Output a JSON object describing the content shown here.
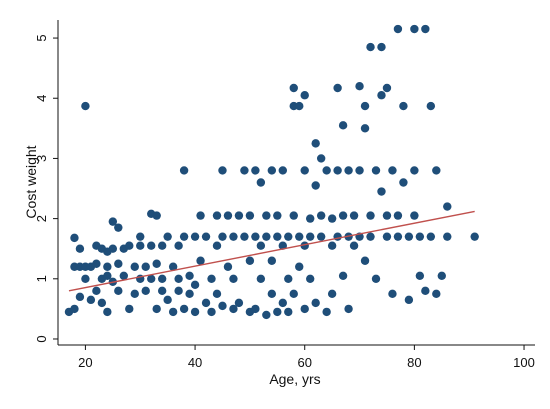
{
  "chart_data": {
    "type": "scatter",
    "xlabel": "Age, yrs",
    "ylabel": "Cost weight",
    "xlim": [
      15,
      102
    ],
    "ylim": [
      -0.1,
      5.3
    ],
    "x_ticks": [
      "20",
      "40",
      "60",
      "80",
      "100"
    ],
    "y_ticks": [
      "0",
      "1",
      "2",
      "3",
      "4",
      "5"
    ],
    "grid": false,
    "legend": "none",
    "colors": {
      "points": "#1f4e79",
      "fit_line": "#c0504d",
      "axis": "#111111"
    },
    "fit_line": {
      "x": [
        17,
        91
      ],
      "y": [
        0.8,
        2.12
      ]
    },
    "series": [
      {
        "points": [
          [
            17,
            0.45
          ],
          [
            18,
            0.5
          ],
          [
            18,
            1.2
          ],
          [
            18,
            1.68
          ],
          [
            19,
            1.5
          ],
          [
            19,
            1.2
          ],
          [
            19,
            0.7
          ],
          [
            20,
            3.87
          ],
          [
            20,
            1.2
          ],
          [
            20,
            1.0
          ],
          [
            21,
            1.2
          ],
          [
            21,
            0.65
          ],
          [
            22,
            1.25
          ],
          [
            22,
            0.8
          ],
          [
            22,
            1.55
          ],
          [
            23,
            1.5
          ],
          [
            23,
            1.0
          ],
          [
            23,
            0.6
          ],
          [
            24,
            1.05
          ],
          [
            24,
            1.2
          ],
          [
            24,
            1.45
          ],
          [
            24,
            0.45
          ],
          [
            25,
            1.95
          ],
          [
            25,
            1.5
          ],
          [
            25,
            0.95
          ],
          [
            26,
            1.25
          ],
          [
            26,
            0.8
          ],
          [
            26,
            1.85
          ],
          [
            27,
            1.5
          ],
          [
            27,
            1.05
          ],
          [
            28,
            0.5
          ],
          [
            28,
            1.55
          ],
          [
            29,
            1.2
          ],
          [
            29,
            0.75
          ],
          [
            30,
            1.55
          ],
          [
            30,
            1.0
          ],
          [
            30,
            1.7
          ],
          [
            31,
            1.2
          ],
          [
            31,
            0.8
          ],
          [
            32,
            2.08
          ],
          [
            32,
            1.55
          ],
          [
            32,
            1.0
          ],
          [
            33,
            0.5
          ],
          [
            33,
            2.05
          ],
          [
            33,
            1.25
          ],
          [
            34,
            0.8
          ],
          [
            34,
            1.55
          ],
          [
            34,
            1.0
          ],
          [
            35,
            1.7
          ],
          [
            35,
            0.65
          ],
          [
            36,
            1.2
          ],
          [
            36,
            0.45
          ],
          [
            37,
            1.0
          ],
          [
            37,
            0.8
          ],
          [
            37,
            1.55
          ],
          [
            38,
            2.8
          ],
          [
            38,
            1.7
          ],
          [
            38,
            0.5
          ],
          [
            39,
            1.05
          ],
          [
            39,
            0.75
          ],
          [
            40,
            1.7
          ],
          [
            40,
            0.9
          ],
          [
            40,
            0.45
          ],
          [
            41,
            1.3
          ],
          [
            41,
            2.05
          ],
          [
            42,
            0.6
          ],
          [
            42,
            1.7
          ],
          [
            43,
            1.0
          ],
          [
            43,
            0.45
          ],
          [
            44,
            2.05
          ],
          [
            44,
            1.55
          ],
          [
            44,
            0.75
          ],
          [
            45,
            2.8
          ],
          [
            45,
            1.7
          ],
          [
            45,
            0.55
          ],
          [
            46,
            1.2
          ],
          [
            46,
            2.05
          ],
          [
            47,
            0.5
          ],
          [
            47,
            1.7
          ],
          [
            47,
            1.0
          ],
          [
            48,
            2.05
          ],
          [
            48,
            0.6
          ],
          [
            49,
            1.7
          ],
          [
            49,
            2.8
          ],
          [
            50,
            0.45
          ],
          [
            50,
            1.3
          ],
          [
            50,
            2.05
          ],
          [
            51,
            1.7
          ],
          [
            51,
            0.5
          ],
          [
            51,
            2.8
          ],
          [
            52,
            1.0
          ],
          [
            52,
            2.6
          ],
          [
            52,
            1.55
          ],
          [
            53,
            0.4
          ],
          [
            53,
            2.05
          ],
          [
            53,
            1.7
          ],
          [
            54,
            0.75
          ],
          [
            54,
            2.8
          ],
          [
            54,
            1.3
          ],
          [
            55,
            0.45
          ],
          [
            55,
            1.7
          ],
          [
            55,
            2.05
          ],
          [
            56,
            1.55
          ],
          [
            56,
            0.6
          ],
          [
            56,
            2.8
          ],
          [
            57,
            1.0
          ],
          [
            57,
            1.7
          ],
          [
            57,
            0.45
          ],
          [
            58,
            4.17
          ],
          [
            58,
            3.87
          ],
          [
            58,
            2.05
          ],
          [
            58,
            0.75
          ],
          [
            59,
            1.7
          ],
          [
            59,
            3.87
          ],
          [
            59,
            1.2
          ],
          [
            60,
            4.05
          ],
          [
            60,
            2.8
          ],
          [
            60,
            1.55
          ],
          [
            60,
            0.5
          ],
          [
            61,
            2.0
          ],
          [
            61,
            1.7
          ],
          [
            61,
            1.0
          ],
          [
            62,
            3.25
          ],
          [
            62,
            2.55
          ],
          [
            62,
            0.6
          ],
          [
            63,
            3.0
          ],
          [
            63,
            2.05
          ],
          [
            63,
            1.7
          ],
          [
            64,
            0.45
          ],
          [
            64,
            2.8
          ],
          [
            65,
            1.55
          ],
          [
            65,
            2.0
          ],
          [
            65,
            0.75
          ],
          [
            66,
            4.17
          ],
          [
            66,
            1.7
          ],
          [
            66,
            2.8
          ],
          [
            67,
            3.55
          ],
          [
            67,
            1.05
          ],
          [
            67,
            2.05
          ],
          [
            68,
            1.7
          ],
          [
            68,
            0.5
          ],
          [
            68,
            2.8
          ],
          [
            69,
            1.55
          ],
          [
            69,
            2.05
          ],
          [
            70,
            4.2
          ],
          [
            70,
            2.8
          ],
          [
            70,
            1.7
          ],
          [
            71,
            3.87
          ],
          [
            71,
            3.5
          ],
          [
            71,
            1.3
          ],
          [
            72,
            4.85
          ],
          [
            72,
            2.05
          ],
          [
            72,
            1.7
          ],
          [
            73,
            2.8
          ],
          [
            73,
            1.0
          ],
          [
            74,
            4.85
          ],
          [
            74,
            4.05
          ],
          [
            74,
            2.45
          ],
          [
            75,
            4.17
          ],
          [
            75,
            1.7
          ],
          [
            75,
            2.05
          ],
          [
            76,
            2.8
          ],
          [
            76,
            0.75
          ],
          [
            77,
            5.15
          ],
          [
            77,
            2.05
          ],
          [
            77,
            1.7
          ],
          [
            78,
            3.87
          ],
          [
            78,
            2.6
          ],
          [
            79,
            1.7
          ],
          [
            79,
            0.65
          ],
          [
            80,
            5.15
          ],
          [
            80,
            2.05
          ],
          [
            80,
            2.8
          ],
          [
            81,
            1.05
          ],
          [
            81,
            1.7
          ],
          [
            82,
            5.15
          ],
          [
            82,
            0.8
          ],
          [
            83,
            3.87
          ],
          [
            83,
            1.7
          ],
          [
            84,
            2.8
          ],
          [
            84,
            0.75
          ],
          [
            85,
            1.05
          ],
          [
            86,
            2.2
          ],
          [
            86,
            1.7
          ],
          [
            91,
            1.7
          ]
        ]
      }
    ]
  }
}
